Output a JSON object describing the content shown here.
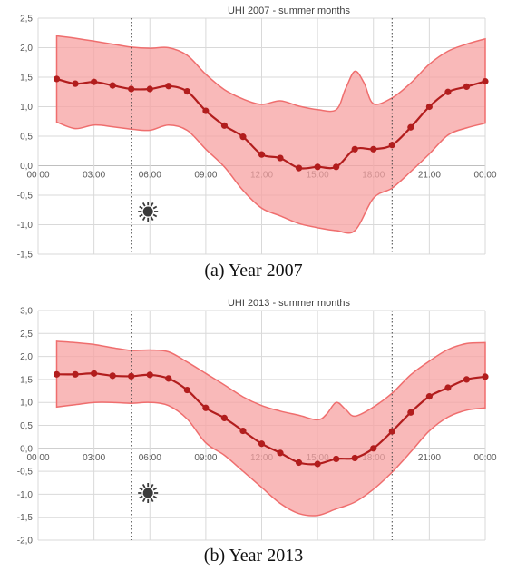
{
  "chart_data": [
    {
      "type": "line",
      "title": "UHI 2007 - summer months",
      "caption": "(a) Year 2007",
      "x_tick_labels": [
        "00:00",
        "03:00",
        "06:00",
        "09:00",
        "12:00",
        "15:00",
        "18:00",
        "21:00",
        "00:00"
      ],
      "y_tick_labels": [
        "-1,5",
        "-1,0",
        "-0,5",
        "0,0",
        "0,5",
        "1,0",
        "1,5",
        "2,0",
        "2,5"
      ],
      "xlim": [
        0,
        24
      ],
      "ylim": [
        -1.5,
        2.5
      ],
      "grid": true,
      "x": [
        1,
        2,
        3,
        4,
        5,
        6,
        7,
        8,
        9,
        10,
        11,
        12,
        13,
        14,
        15,
        16,
        17,
        18,
        19,
        20,
        21,
        22,
        23,
        24
      ],
      "series": [
        {
          "values": [
            1.47,
            1.39,
            1.42,
            1.36,
            1.3,
            1.3,
            1.35,
            1.26,
            0.93,
            0.68,
            0.49,
            0.19,
            0.13,
            -0.04,
            -0.02,
            -0.02,
            0.28,
            0.28,
            0.35,
            0.65,
            1.0,
            1.25,
            1.34,
            1.43
          ]
        }
      ],
      "band_upper": {
        "x": [
          1,
          2,
          3,
          4,
          5,
          6,
          7,
          8,
          9,
          10,
          11,
          12,
          13,
          14,
          15,
          16,
          16.5,
          17,
          17.5,
          18,
          19,
          20,
          21,
          22,
          23,
          24
        ],
        "values": [
          2.2,
          2.16,
          2.11,
          2.06,
          2.01,
          1.99,
          2.0,
          1.87,
          1.55,
          1.29,
          1.13,
          1.04,
          1.1,
          1.01,
          0.95,
          0.95,
          1.3,
          1.6,
          1.4,
          1.05,
          1.15,
          1.4,
          1.72,
          1.94,
          2.06,
          2.15
        ]
      },
      "band_lower": {
        "x": [
          1,
          2,
          3,
          4,
          5,
          6,
          7,
          8,
          9,
          10,
          11,
          12,
          13,
          14,
          15,
          16,
          17,
          18,
          19,
          20,
          21,
          22,
          23,
          24
        ],
        "values": [
          0.74,
          0.63,
          0.69,
          0.66,
          0.62,
          0.6,
          0.69,
          0.6,
          0.28,
          -0.02,
          -0.42,
          -0.72,
          -0.85,
          -0.98,
          -1.05,
          -1.1,
          -1.1,
          -0.55,
          -0.38,
          -0.1,
          0.2,
          0.52,
          0.64,
          0.72
        ]
      },
      "markers": {
        "sunrise_hour": 5,
        "sunset_hour": 19,
        "sun_icon": "sun-icon",
        "moon_icon": "crescent-moon-icon"
      },
      "colors": {
        "band": "#f7a1a1",
        "band_edge": "#ef6e6e",
        "line": "#b21d1d"
      }
    },
    {
      "type": "line",
      "title": "UHI 2013 - summer months",
      "caption": "(b) Year 2013",
      "x_tick_labels": [
        "00:00",
        "03:00",
        "06:00",
        "09:00",
        "12:00",
        "15:00",
        "18:00",
        "21:00",
        "00:00"
      ],
      "y_tick_labels": [
        "-2,0",
        "-1,5",
        "-1,0",
        "-0,5",
        "0,0",
        "0,5",
        "1,0",
        "1,5",
        "2,0",
        "2,5",
        "3,0"
      ],
      "xlim": [
        0,
        24
      ],
      "ylim": [
        -2.0,
        3.0
      ],
      "grid": true,
      "x": [
        1,
        2,
        3,
        4,
        5,
        6,
        7,
        8,
        9,
        10,
        11,
        12,
        13,
        14,
        15,
        16,
        17,
        18,
        19,
        20,
        21,
        22,
        23,
        24
      ],
      "series": [
        {
          "values": [
            1.61,
            1.61,
            1.63,
            1.58,
            1.57,
            1.6,
            1.52,
            1.27,
            0.88,
            0.66,
            0.38,
            0.1,
            -0.1,
            -0.31,
            -0.34,
            -0.23,
            -0.21,
            0.0,
            0.37,
            0.78,
            1.13,
            1.32,
            1.5,
            1.56
          ]
        }
      ],
      "band_upper": {
        "x": [
          1,
          2,
          3,
          4,
          5,
          6,
          7,
          8,
          9,
          10,
          11,
          12,
          13,
          14,
          15,
          15.5,
          16,
          16.5,
          17,
          18,
          19,
          20,
          21,
          22,
          23,
          24
        ],
        "values": [
          2.33,
          2.3,
          2.26,
          2.19,
          2.13,
          2.14,
          2.1,
          1.88,
          1.63,
          1.38,
          1.12,
          0.93,
          0.81,
          0.72,
          0.62,
          0.75,
          1.0,
          0.85,
          0.7,
          0.9,
          1.2,
          1.6,
          1.9,
          2.15,
          2.28,
          2.3
        ]
      },
      "band_lower": {
        "x": [
          1,
          2,
          3,
          4,
          5,
          6,
          7,
          8,
          9,
          10,
          11,
          12,
          13,
          14,
          15,
          16,
          17,
          18,
          19,
          20,
          21,
          22,
          23,
          24
        ],
        "values": [
          0.9,
          0.95,
          1.0,
          1.0,
          0.98,
          1.0,
          0.93,
          0.64,
          0.12,
          -0.15,
          -0.5,
          -0.85,
          -1.2,
          -1.42,
          -1.46,
          -1.32,
          -1.17,
          -0.89,
          -0.52,
          -0.08,
          0.38,
          0.68,
          0.83,
          0.88
        ]
      },
      "markers": {
        "sunrise_hour": 5,
        "sunset_hour": 19,
        "sun_icon": "sun-icon",
        "moon_icon": "crescent-moon-icon"
      },
      "colors": {
        "band": "#f7a1a1",
        "band_edge": "#ef6e6e",
        "line": "#b21d1d"
      }
    }
  ]
}
